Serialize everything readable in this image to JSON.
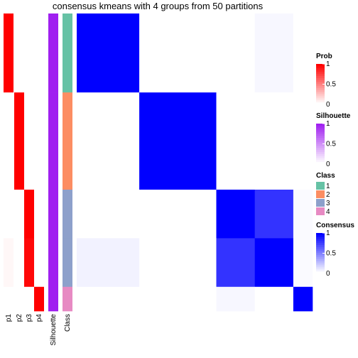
{
  "chart_data": {
    "type": "heatmap",
    "title": "consensus kmeans with 4 groups from 50 partitions",
    "segments": [
      13,
      16,
      8,
      8,
      4
    ],
    "consensus": [
      [
        1,
        0,
        0,
        0.03,
        0
      ],
      [
        0,
        1,
        0,
        0,
        0
      ],
      [
        0,
        0,
        1,
        0.8,
        0.02
      ],
      [
        0.05,
        0,
        0.8,
        1,
        0.02
      ],
      [
        0,
        0,
        0.03,
        0,
        1
      ]
    ],
    "annotations": [
      {
        "name": "p1",
        "values": [
          1,
          0,
          0,
          0.03,
          0
        ]
      },
      {
        "name": "p2",
        "values": [
          0,
          1,
          0,
          0,
          0
        ]
      },
      {
        "name": "p3",
        "values": [
          0,
          0,
          1,
          0.97,
          0
        ]
      },
      {
        "name": "p4",
        "values": [
          0,
          0,
          0,
          0,
          1
        ]
      }
    ],
    "silhouette": {
      "name": "Silhouette",
      "values": [
        1,
        1,
        1,
        1,
        1
      ]
    },
    "class": {
      "name": "Class",
      "values": [
        1,
        2,
        3,
        3,
        4
      ]
    },
    "prob_legend": {
      "title": "Prob",
      "color": "#ff0000",
      "ticks": [
        0,
        0.5,
        1
      ]
    },
    "silhouette_legend": {
      "color": "#a020f0",
      "ticks": [
        0,
        0.5,
        1
      ]
    },
    "class_legend": {
      "labels": [
        1,
        2,
        3,
        4
      ],
      "colors": [
        "#66c2a5",
        "#fc8d62",
        "#8da0cb",
        "#e78ac3"
      ]
    },
    "consensus_legend": {
      "title": "Consensus",
      "color": "#0000ff",
      "ticks": [
        0,
        0.5,
        1
      ]
    }
  }
}
